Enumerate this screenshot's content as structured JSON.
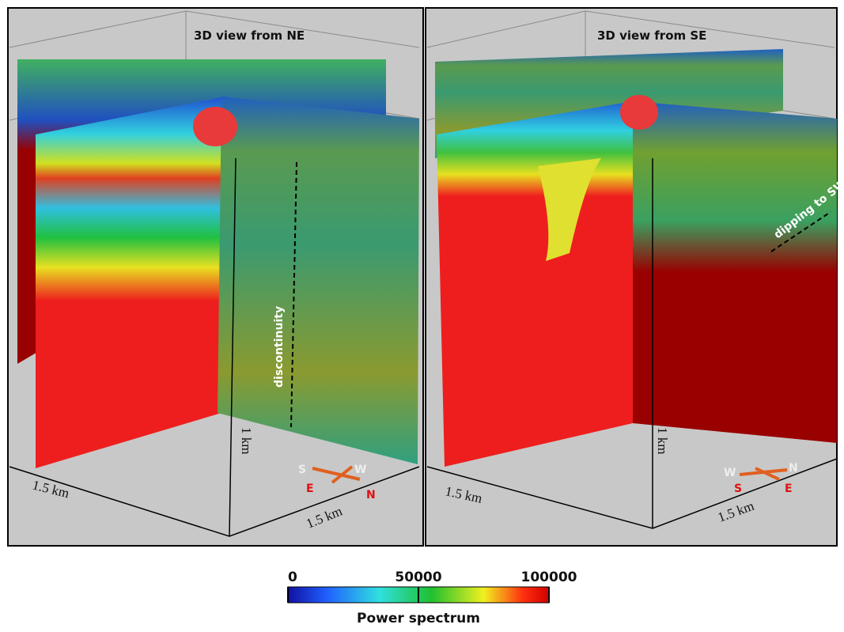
{
  "panels": [
    {
      "title": "3D view from NE",
      "annotation": "discontinuity",
      "depth_label": "1 km",
      "axis_labels": [
        "1.5 km",
        "1.5 km"
      ],
      "compass": [
        "S",
        "W",
        "E",
        "N"
      ]
    },
    {
      "title": "3D view from SE",
      "annotation": "dipping to SW",
      "depth_label": "1 km",
      "axis_labels": [
        "1.5 km",
        "1.5 km"
      ],
      "compass": [
        "W",
        "N",
        "S",
        "E"
      ]
    }
  ],
  "colorbar": {
    "label": "Power spectrum",
    "ticks": [
      0,
      50000,
      100000
    ]
  }
}
